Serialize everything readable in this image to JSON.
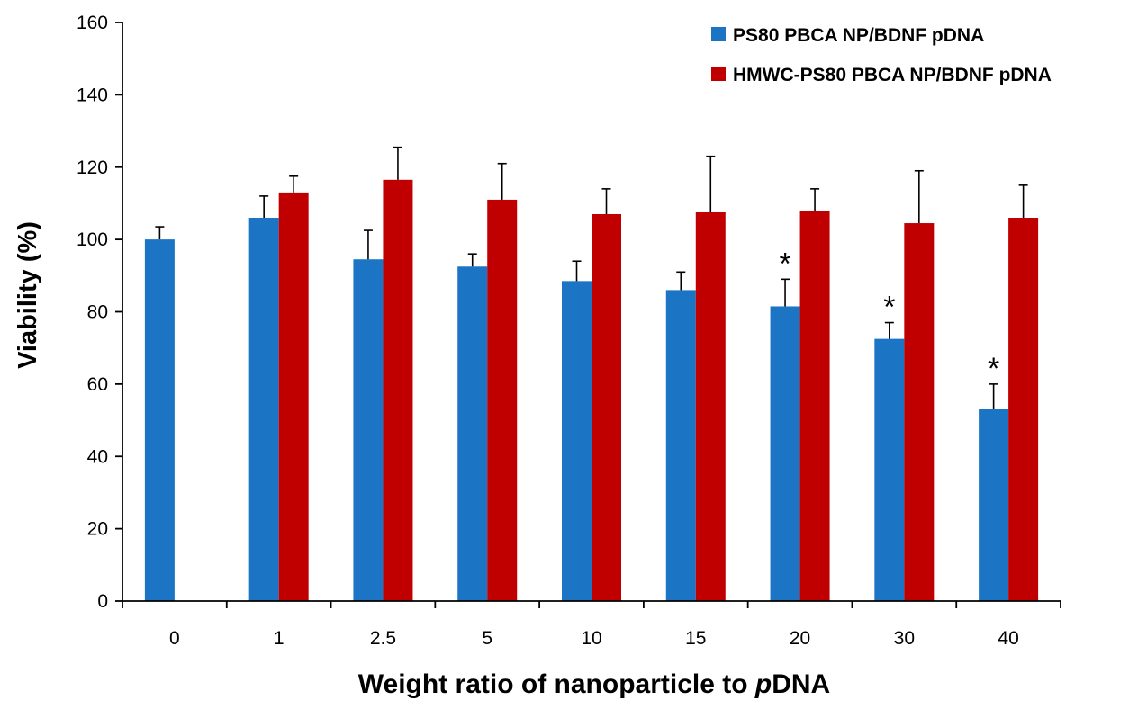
{
  "chart_data": {
    "type": "bar",
    "title": "",
    "xlabel_parts": [
      {
        "text": "Weight ratio of nanoparticle to ",
        "italic": false
      },
      {
        "text": "p",
        "italic": true
      },
      {
        "text": "DNA",
        "italic": false
      }
    ],
    "ylabel": "Viability (%)",
    "ylim": [
      0,
      160
    ],
    "yticks": [
      0,
      20,
      40,
      60,
      80,
      100,
      120,
      140,
      160
    ],
    "grid": false,
    "legend_position": "top-right",
    "categories": [
      "0",
      "1",
      "2.5",
      "5",
      "10",
      "15",
      "20",
      "30",
      "40"
    ],
    "significance_marker": "*",
    "series": [
      {
        "name": "PS80 PBCA NP/BDNF pDNA",
        "color": "#1b75c4",
        "values": [
          100,
          106,
          94.5,
          92.5,
          88.5,
          86,
          81.5,
          72.5,
          53
        ],
        "errors": [
          3.5,
          6,
          8,
          3.5,
          5.5,
          5,
          7.5,
          4.5,
          7
        ],
        "significant": [
          false,
          false,
          false,
          false,
          false,
          false,
          true,
          true,
          true
        ]
      },
      {
        "name": "HMWC-PS80 PBCA NP/BDNF pDNA",
        "color": "#c00000",
        "values": [
          null,
          113,
          116.5,
          111,
          107,
          107.5,
          108,
          104.5,
          106
        ],
        "errors": [
          null,
          4.5,
          9,
          10,
          7,
          15.5,
          6,
          14.5,
          9
        ],
        "significant": [
          false,
          false,
          false,
          false,
          false,
          false,
          false,
          false,
          false
        ]
      }
    ]
  }
}
